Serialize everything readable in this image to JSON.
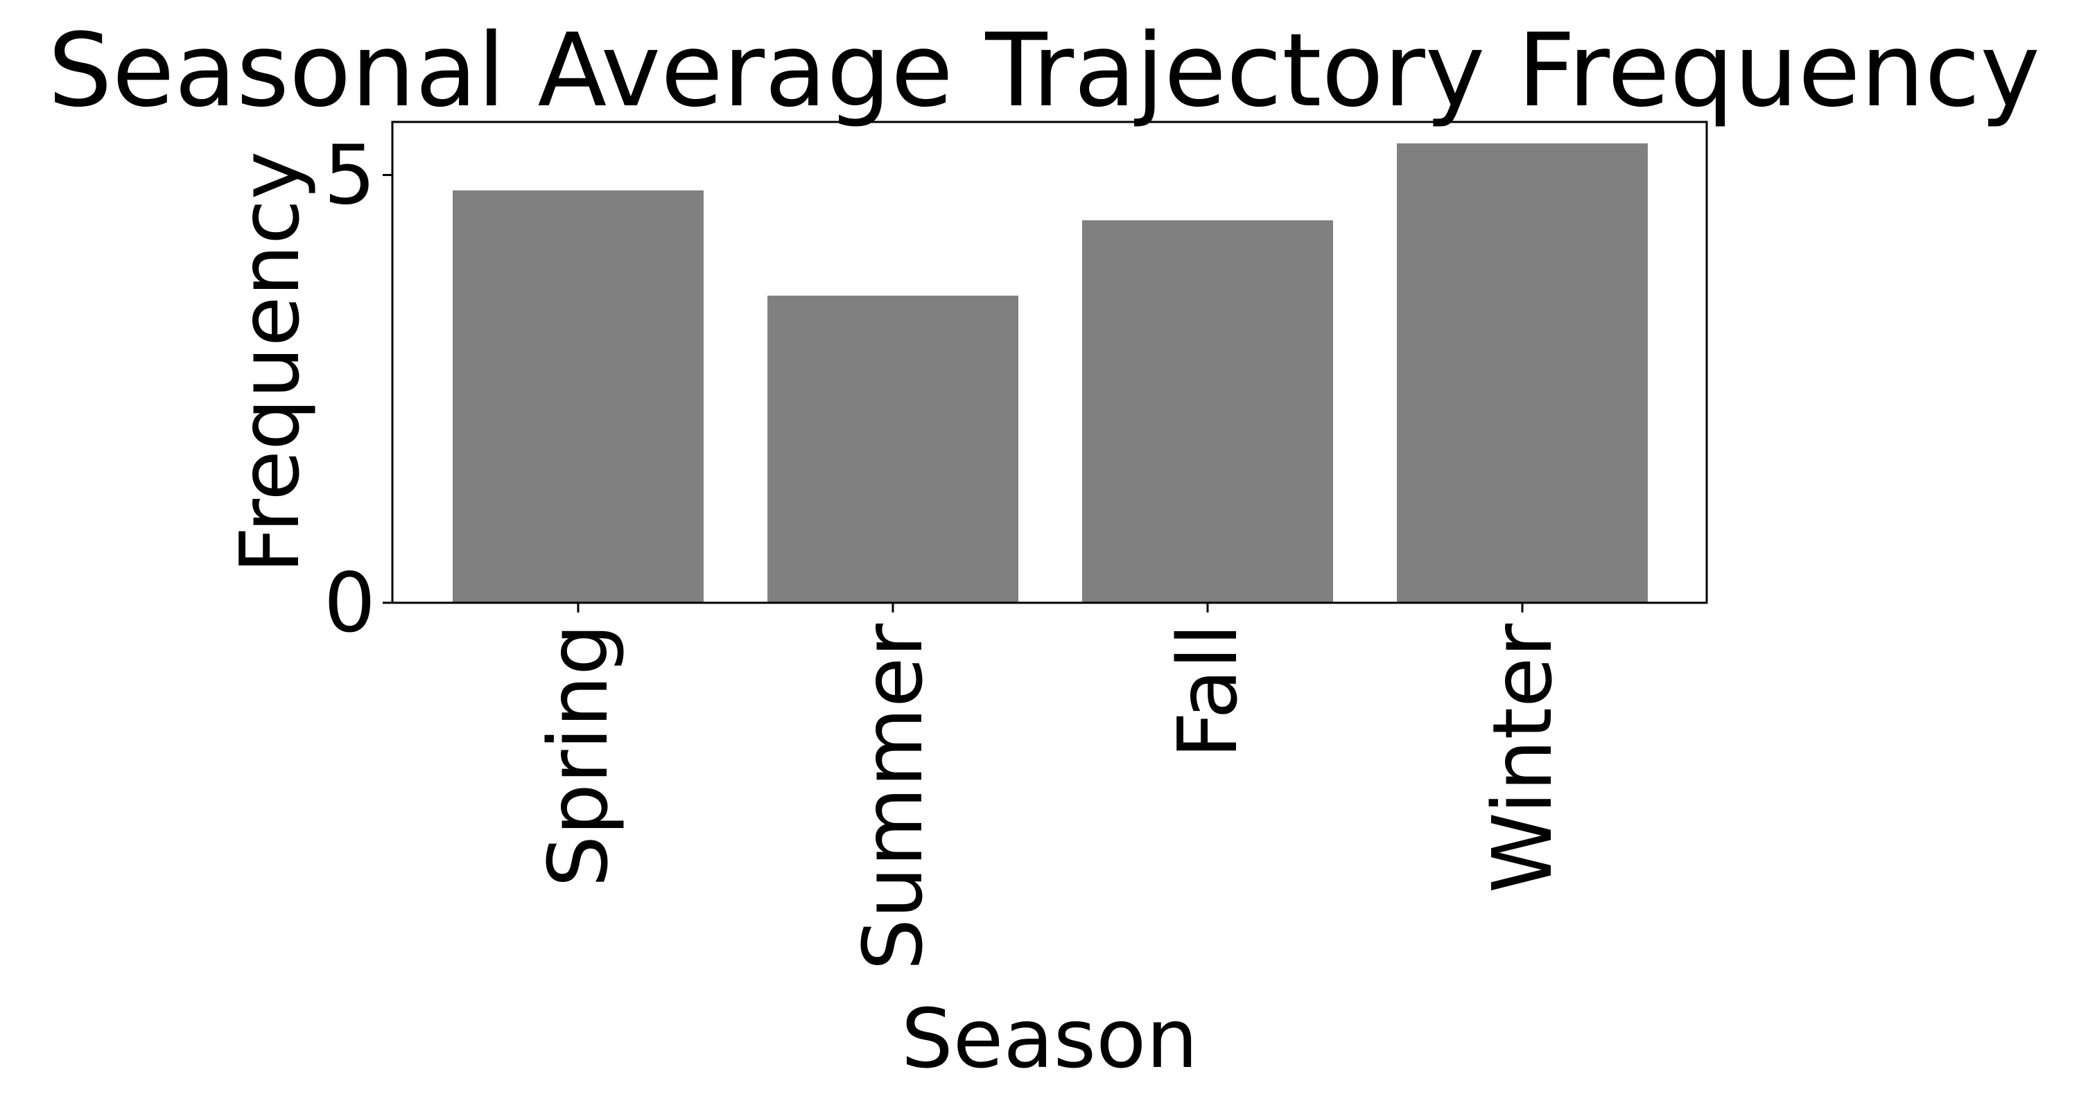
{
  "chart_data": {
    "type": "bar",
    "title": "Seasonal Average Trajectory Frequency",
    "xlabel": "Season",
    "ylabel": "Frequency",
    "categories": [
      "Spring",
      "Summer",
      "Fall",
      "Winter"
    ],
    "values": [
      4.82,
      3.59,
      4.47,
      5.37
    ],
    "ylim": [
      0,
      5.62
    ],
    "yticks": [
      0,
      5
    ],
    "ytick_labels": [
      "0",
      "5"
    ],
    "bar_color": "#808080",
    "xtick_rotation": "vertical",
    "grid": false,
    "legend": "none"
  }
}
